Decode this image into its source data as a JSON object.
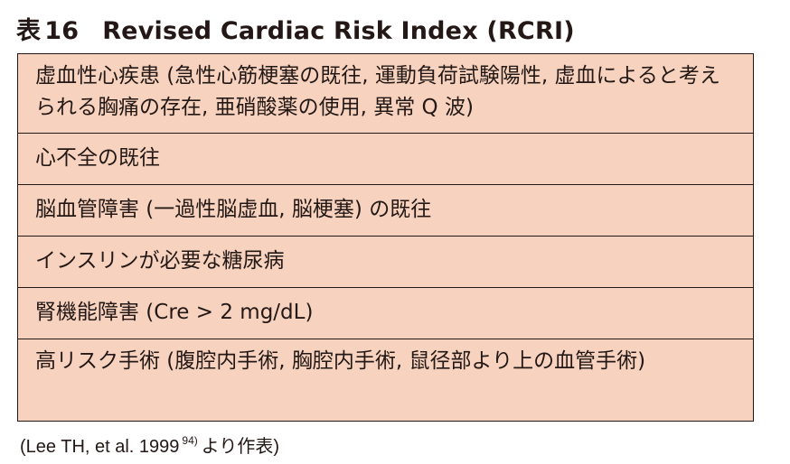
{
  "table": {
    "title_prefix": "表",
    "title_number": "16",
    "title_text": "Revised Cardiac Risk Index (RCRI)",
    "rows": [
      "虚血性心疾患 (急性心筋梗塞の既往, 運動負荷試験陽性, 虚血によると考えられる胸痛の存在, 亜硝酸薬の使用, 異常 Q 波)",
      "心不全の既往",
      "脳血管障害 (一過性脳虚血, 脳梗塞) の既往",
      "インスリンが必要な糖尿病",
      "腎機能障害 (Cre > 2 mg/dL)",
      "高リスク手術 (腹腔内手術, 胸腔内手術, 鼠径部より上の血管手術)"
    ]
  },
  "source_note": {
    "text_before": "(Lee TH, et al. 1999",
    "superscript": "94)",
    "text_after": "より作表)"
  }
}
